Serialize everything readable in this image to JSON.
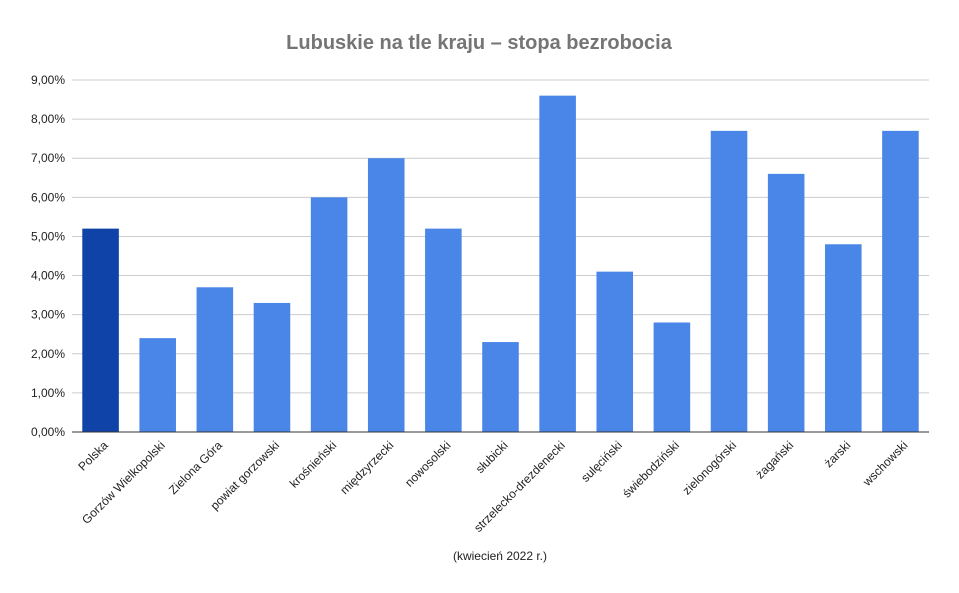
{
  "chart_data": {
    "type": "bar",
    "title": "Lubuskie na tle kraju – stopa bezrobocia",
    "xlabel": "(kwiecień 2022 r.)",
    "ylabel": "",
    "ylim": [
      0,
      9
    ],
    "y_ticks": [
      "0,00%",
      "1,00%",
      "2,00%",
      "3,00%",
      "4,00%",
      "5,00%",
      "6,00%",
      "7,00%",
      "8,00%",
      "9,00%"
    ],
    "grid": true,
    "legend": "none",
    "categories": [
      "Polska",
      "Gorzów Wielkopolski",
      "Zielona Góra",
      "powiat gorzowski",
      "krośnieński",
      "międzyrzecki",
      "nowosolski",
      "słubicki",
      "strzelecko-drezdenecki",
      "sulęciński",
      "świebodziński",
      "zielonogórski",
      "żagański",
      "żarski",
      "wschowski"
    ],
    "values": [
      5.2,
      2.4,
      3.7,
      3.3,
      6.0,
      7.0,
      5.2,
      2.3,
      8.6,
      4.1,
      2.8,
      7.7,
      6.6,
      4.8,
      7.7
    ],
    "colors": {
      "highlight": "#0f43a8",
      "bar": "#4a86e8",
      "grid": "#cccccc",
      "axis": "#333333",
      "title": "#757575"
    },
    "highlight_index": 0
  }
}
